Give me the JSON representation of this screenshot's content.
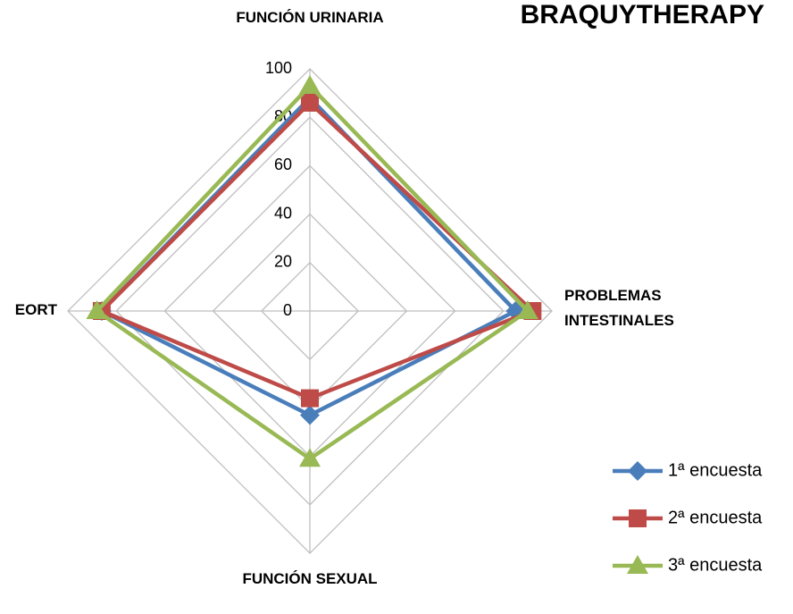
{
  "chart_data": {
    "type": "radar",
    "title": "BRAQUYTHERAPY",
    "categories": [
      "FUNCIÓN URINARIA",
      "PROBLEMAS INTESTINALES",
      "FUNCIÓN SEXUAL",
      "EORT"
    ],
    "series": [
      {
        "name": "1ª encuesta",
        "color": "#4a7ebb",
        "marker": "diamond",
        "values": [
          88,
          85,
          43,
          86
        ]
      },
      {
        "name": "2ª encuesta",
        "color": "#be4b48",
        "marker": "square",
        "values": [
          86,
          92,
          36,
          86
        ]
      },
      {
        "name": "3ª encuesta",
        "color": "#98b954",
        "marker": "triangle",
        "values": [
          93,
          90,
          61,
          88
        ]
      }
    ],
    "ylim": [
      0,
      100
    ],
    "yticks": [
      0,
      20,
      40,
      60,
      80,
      100
    ],
    "grid": true,
    "legend": "right"
  }
}
